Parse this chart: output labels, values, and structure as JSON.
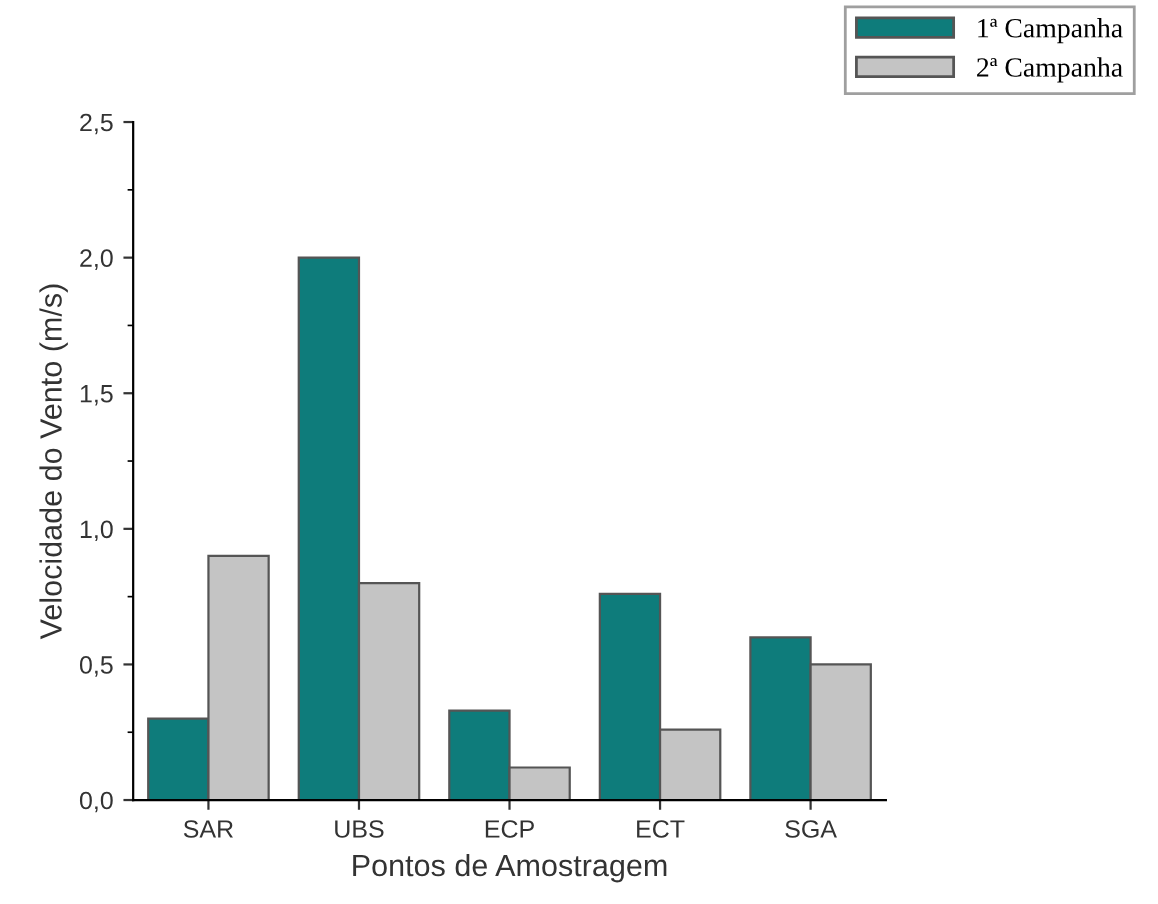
{
  "chart_data": {
    "type": "bar",
    "xlabel": "Pontos de Amostragem",
    "ylabel": "Velocidade do Vento (m/s)",
    "categories": [
      "SAR",
      "UBS",
      "ECP",
      "ECT",
      "SGA"
    ],
    "series": [
      {
        "name": "1ª Campanha",
        "color": "#0e7c7b",
        "values": [
          0.3,
          2.0,
          0.33,
          0.76,
          0.6
        ]
      },
      {
        "name": "2ª Campanha",
        "color": "#c4c4c4",
        "values": [
          0.9,
          0.8,
          0.12,
          0.26,
          0.5
        ]
      }
    ],
    "ylim": [
      0,
      2.5
    ],
    "yticks": [
      {
        "value": 0,
        "label": "0,0"
      },
      {
        "value": 0.5,
        "label": "0,5"
      },
      {
        "value": 1.0,
        "label": "1,0"
      },
      {
        "value": 1.5,
        "label": "1,5"
      },
      {
        "value": 2.0,
        "label": "2,0"
      },
      {
        "value": 2.5,
        "label": "2,5"
      }
    ],
    "grid": false,
    "legend": "top right"
  }
}
